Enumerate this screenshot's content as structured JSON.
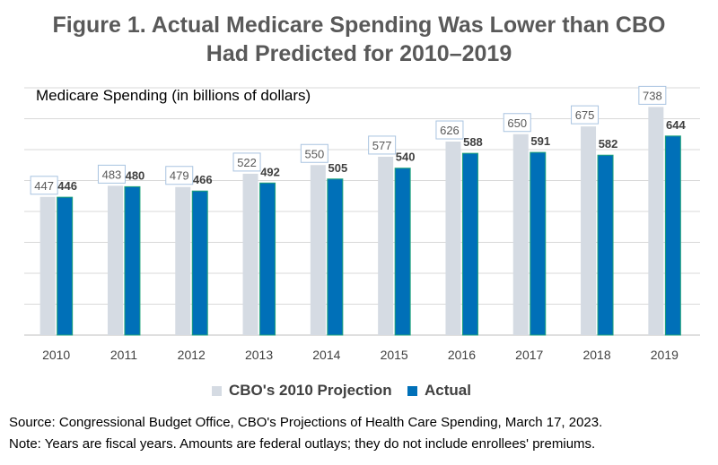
{
  "title_line1": "Figure 1. Actual Medicare Spending Was Lower than CBO",
  "title_line2": "Had Predicted for 2010–2019",
  "source": "Source: Congressional Budget Office, CBO's Projections of Health Care Spending, March 17, 2023.",
  "note": "Note: Years are fiscal years. Amounts are federal outlays; they do not include enrollees' premiums.",
  "colors": {
    "projection": "#D5DBE3",
    "actual": "#0070B8",
    "actual_border": "#1FA37A",
    "label_box_border": "#A9C4E0",
    "grid": "#D9D9D9",
    "axis": "#BFBFBF"
  },
  "chart_data": {
    "type": "bar",
    "title": "Figure 1. Actual Medicare Spending Was Lower than CBO Had Predicted for 2010–2019",
    "ylabel": "Medicare Spending (in billions of dollars)",
    "xlabel": "",
    "categories": [
      "2010",
      "2011",
      "2012",
      "2013",
      "2014",
      "2015",
      "2016",
      "2017",
      "2018",
      "2019"
    ],
    "series": [
      {
        "name": "CBO's 2010 Projection",
        "values": [
          447,
          483,
          479,
          522,
          550,
          577,
          626,
          650,
          675,
          738
        ]
      },
      {
        "name": "Actual",
        "values": [
          446,
          480,
          466,
          492,
          505,
          540,
          588,
          591,
          582,
          644
        ]
      }
    ],
    "ylim": [
      0,
      800
    ],
    "grid": true,
    "legend": "bottom"
  }
}
